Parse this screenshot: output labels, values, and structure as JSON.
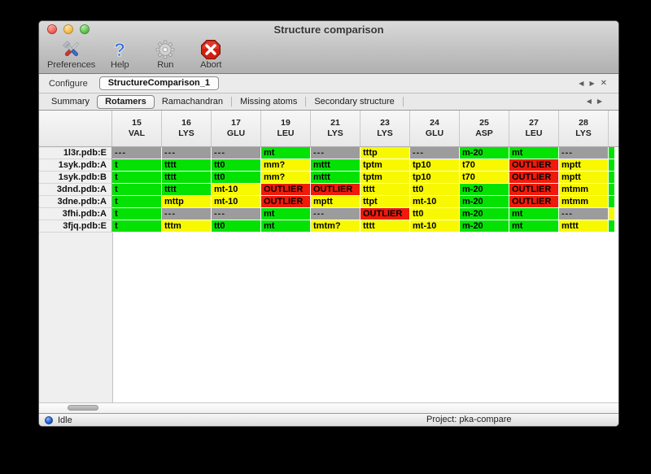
{
  "window": {
    "title": "Structure comparison"
  },
  "traffic_lights": {
    "close": "close",
    "minimize": "minimize",
    "zoom": "zoom"
  },
  "toolbar": [
    {
      "id": "preferences",
      "label": "Preferences",
      "icon": "tools-icon"
    },
    {
      "id": "help",
      "label": "Help",
      "icon": "help-icon"
    },
    {
      "id": "run",
      "label": "Run",
      "icon": "gear-icon"
    },
    {
      "id": "abort",
      "label": "Abort",
      "icon": "abort-icon"
    }
  ],
  "configure": {
    "label": "Configure",
    "selected_tab": "StructureComparison_1",
    "prev": "◀",
    "next": "▶",
    "close": "✕"
  },
  "tabs": {
    "items": [
      "Summary",
      "Rotamers",
      "Ramachandran",
      "Missing atoms",
      "Secondary structure"
    ],
    "active_index": 1,
    "prev": "◀",
    "next": "▶"
  },
  "table": {
    "columns": [
      {
        "num": "15",
        "res": "VAL"
      },
      {
        "num": "16",
        "res": "LYS"
      },
      {
        "num": "17",
        "res": "GLU"
      },
      {
        "num": "19",
        "res": "LEU"
      },
      {
        "num": "21",
        "res": "LYS"
      },
      {
        "num": "23",
        "res": "LYS"
      },
      {
        "num": "24",
        "res": "GLU"
      },
      {
        "num": "25",
        "res": "ASP"
      },
      {
        "num": "27",
        "res": "LEU"
      },
      {
        "num": "28",
        "res": "LYS"
      }
    ],
    "rows": [
      {
        "label": "1l3r.pdb:E",
        "cells": [
          [
            "---",
            "na"
          ],
          [
            "---",
            "na"
          ],
          [
            "---",
            "na"
          ],
          [
            "mt",
            "ok"
          ],
          [
            "---",
            "na"
          ],
          [
            "tttp",
            "warn"
          ],
          [
            "---",
            "na"
          ],
          [
            "m-20",
            "ok"
          ],
          [
            "mt",
            "ok"
          ],
          [
            "---",
            "na"
          ]
        ],
        "overflow": "ok"
      },
      {
        "label": "1syk.pdb:A",
        "cells": [
          [
            "t",
            "ok"
          ],
          [
            "tttt",
            "ok"
          ],
          [
            "tt0",
            "ok"
          ],
          [
            "mm?",
            "warn"
          ],
          [
            "mttt",
            "ok"
          ],
          [
            "tptm",
            "warn"
          ],
          [
            "tp10",
            "warn"
          ],
          [
            "t70",
            "warn"
          ],
          [
            "OUTLIER",
            "outlier"
          ],
          [
            "mptt",
            "warn"
          ]
        ],
        "overflow": "ok"
      },
      {
        "label": "1syk.pdb:B",
        "cells": [
          [
            "t",
            "ok"
          ],
          [
            "tttt",
            "ok"
          ],
          [
            "tt0",
            "ok"
          ],
          [
            "mm?",
            "warn"
          ],
          [
            "mttt",
            "ok"
          ],
          [
            "tptm",
            "warn"
          ],
          [
            "tp10",
            "warn"
          ],
          [
            "t70",
            "warn"
          ],
          [
            "OUTLIER",
            "outlier"
          ],
          [
            "mptt",
            "warn"
          ]
        ],
        "overflow": "ok"
      },
      {
        "label": "3dnd.pdb:A",
        "cells": [
          [
            "t",
            "ok"
          ],
          [
            "tttt",
            "ok"
          ],
          [
            "mt-10",
            "warn"
          ],
          [
            "OUTLIER",
            "outlier"
          ],
          [
            "OUTLIER",
            "outlier"
          ],
          [
            "tttt",
            "warn"
          ],
          [
            "tt0",
            "warn"
          ],
          [
            "m-20",
            "ok"
          ],
          [
            "OUTLIER",
            "outlier"
          ],
          [
            "mtmm",
            "warn"
          ]
        ],
        "overflow": "ok"
      },
      {
        "label": "3dne.pdb:A",
        "cells": [
          [
            "t",
            "ok"
          ],
          [
            "mttp",
            "warn"
          ],
          [
            "mt-10",
            "warn"
          ],
          [
            "OUTLIER",
            "outlier"
          ],
          [
            "mptt",
            "warn"
          ],
          [
            "ttpt",
            "warn"
          ],
          [
            "mt-10",
            "warn"
          ],
          [
            "m-20",
            "ok"
          ],
          [
            "OUTLIER",
            "outlier"
          ],
          [
            "mtmm",
            "warn"
          ]
        ],
        "overflow": "ok"
      },
      {
        "label": "3fhi.pdb:A",
        "cells": [
          [
            "t",
            "ok"
          ],
          [
            "---",
            "na"
          ],
          [
            "---",
            "na"
          ],
          [
            "mt",
            "ok"
          ],
          [
            "---",
            "na"
          ],
          [
            "OUTLIER",
            "outlier"
          ],
          [
            "tt0",
            "warn"
          ],
          [
            "m-20",
            "ok"
          ],
          [
            "mt",
            "ok"
          ],
          [
            "---",
            "na"
          ]
        ],
        "overflow": "warn"
      },
      {
        "label": "3fjq.pdb:E",
        "cells": [
          [
            "t",
            "ok"
          ],
          [
            "tttm",
            "warn"
          ],
          [
            "tt0",
            "ok"
          ],
          [
            "mt",
            "ok"
          ],
          [
            "tmtm?",
            "warn"
          ],
          [
            "tttt",
            "warn"
          ],
          [
            "mt-10",
            "warn"
          ],
          [
            "m-20",
            "ok"
          ],
          [
            "mt",
            "ok"
          ],
          [
            "mttt",
            "warn"
          ]
        ],
        "overflow": "ok"
      }
    ]
  },
  "statusbar": {
    "status": "Idle",
    "project": "Project: pka-compare"
  },
  "colors": {
    "ok": "#04e204",
    "warn": "#f8f800",
    "outlier": "#ef1a0b",
    "na": "#9c9c9c"
  }
}
